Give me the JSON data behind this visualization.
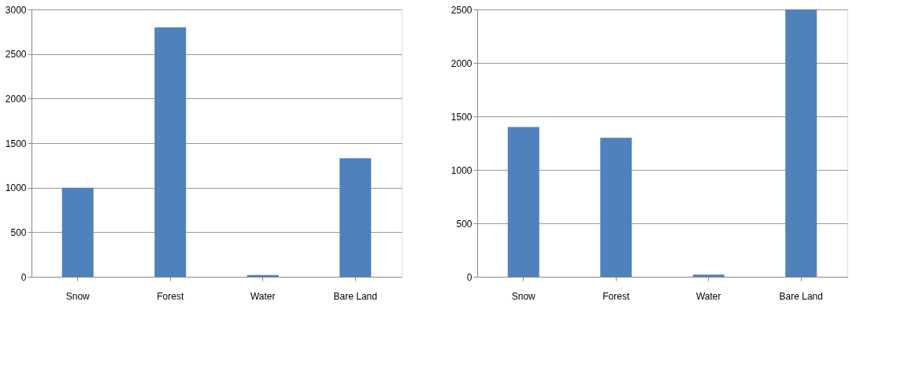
{
  "chart_data": [
    {
      "type": "bar",
      "categories": [
        "Snow",
        "Forest",
        "Water",
        "Bare Land"
      ],
      "values": [
        1000,
        2800,
        20,
        1330
      ],
      "color": "#4f81bd",
      "ylim": [
        0,
        3000
      ],
      "yticks": [
        0,
        500,
        1000,
        1500,
        2000,
        2500,
        3000
      ],
      "grid": "y"
    },
    {
      "type": "bar",
      "categories": [
        "Snow",
        "Forest",
        "Water",
        "Bare Land"
      ],
      "values": [
        1400,
        1300,
        20,
        2500
      ],
      "color": "#4f81bd",
      "ylim": [
        0,
        2500
      ],
      "yticks": [
        0,
        500,
        1000,
        1500,
        2000,
        2500
      ],
      "grid": "y"
    }
  ]
}
